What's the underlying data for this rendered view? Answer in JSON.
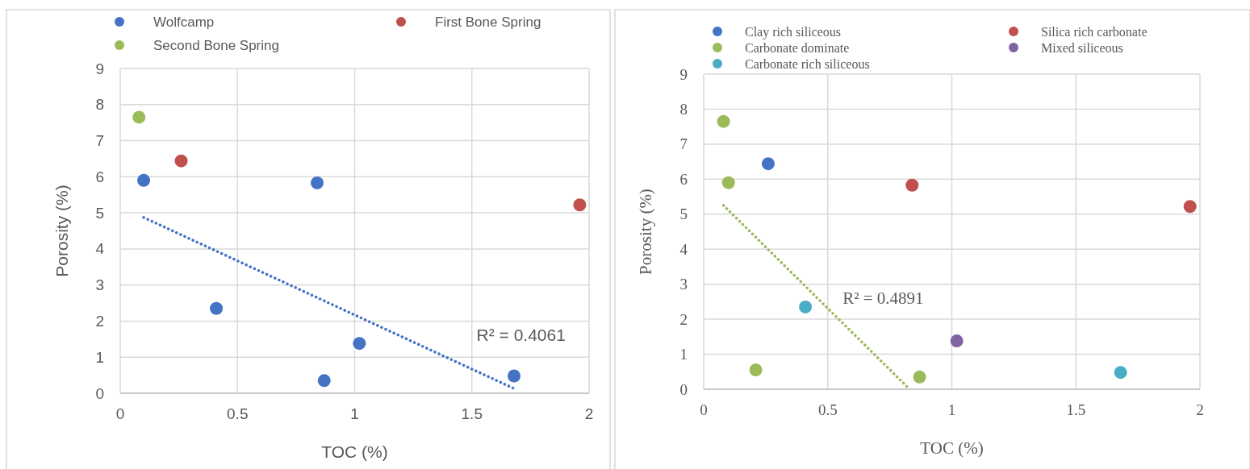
{
  "chart_data": [
    {
      "type": "scatter",
      "xlabel": "TOC (%)",
      "ylabel": "Porosity (%)",
      "xlim": [
        0,
        2
      ],
      "xticks": [
        0,
        0.5,
        1,
        1.5,
        2
      ],
      "ylim": [
        0,
        9
      ],
      "yticks": [
        0,
        1,
        2,
        3,
        4,
        5,
        6,
        7,
        8,
        9
      ],
      "grid": true,
      "legend": "top",
      "marker": "circle",
      "annotations": [
        "R² = 0.4061"
      ],
      "series": [
        {
          "name": "Wolfcamp",
          "color": "#4472c4",
          "x": [
            0.1,
            0.41,
            0.84,
            0.87,
            1.02,
            1.68
          ],
          "values": [
            5.9,
            2.35,
            5.83,
            0.35,
            1.38,
            0.48
          ]
        },
        {
          "name": "First Bone Spring",
          "color": "#c0504d",
          "x": [
            0.26,
            1.96
          ],
          "values": [
            6.44,
            5.22
          ]
        },
        {
          "name": "Second Bone Spring",
          "color": "#9bbb59",
          "x": [
            0.08
          ],
          "values": [
            7.65
          ]
        },
        {
          "type": "line",
          "line_style": "dotted",
          "marker": "none",
          "color": "#4472c4",
          "x": [
            0.1,
            1.68
          ],
          "values": [
            4.87,
            0.13
          ]
        }
      ]
    },
    {
      "type": "scatter",
      "xlabel": "TOC (%)",
      "ylabel": "Porosity (%)",
      "xlim": [
        0,
        2
      ],
      "xticks": [
        0,
        0.5,
        1,
        1.5,
        2
      ],
      "ylim": [
        0,
        9
      ],
      "yticks": [
        0,
        1,
        2,
        3,
        4,
        5,
        6,
        7,
        8,
        9
      ],
      "grid": true,
      "legend": "top",
      "marker": "circle",
      "annotations": [
        "R² = 0.4891"
      ],
      "series": [
        {
          "name": "Clay rich siliceous",
          "color": "#4472c4",
          "x": [
            0.26
          ],
          "values": [
            6.44
          ]
        },
        {
          "name": "Silica rich carbonate",
          "color": "#c0504d",
          "x": [
            0.84,
            1.96
          ],
          "values": [
            5.83,
            5.22
          ]
        },
        {
          "name": "Carbonate dominate",
          "color": "#9bbb59",
          "x": [
            0.08,
            0.1,
            0.21,
            0.87
          ],
          "values": [
            7.65,
            5.9,
            0.55,
            0.35
          ]
        },
        {
          "name": "Mixed siliceous",
          "color": "#8064a2",
          "x": [
            1.02
          ],
          "values": [
            1.38
          ]
        },
        {
          "name": "Carbonate rich siliceous",
          "color": "#4bacc6",
          "x": [
            0.41,
            1.68
          ],
          "values": [
            2.35,
            0.48
          ]
        },
        {
          "type": "line",
          "line_style": "dotted",
          "marker": "none",
          "color": "#9bbb59",
          "x": [
            0.08,
            0.83
          ],
          "values": [
            5.25,
            0
          ]
        }
      ]
    }
  ]
}
